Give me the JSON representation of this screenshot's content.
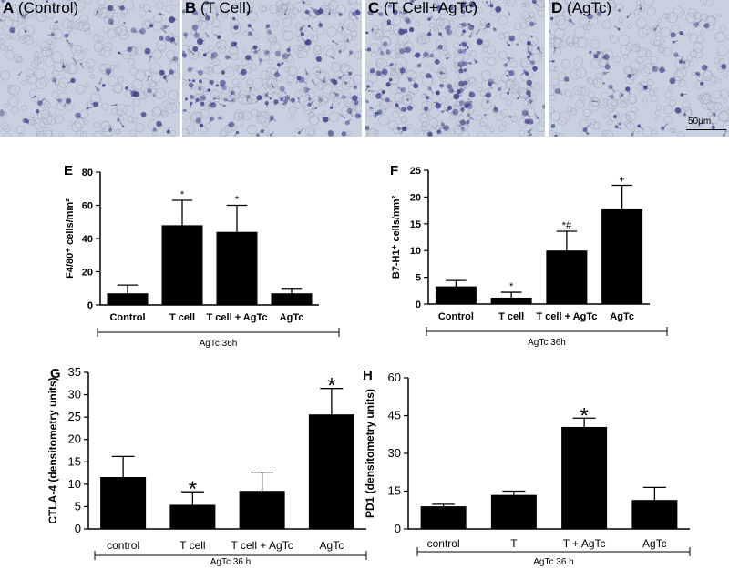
{
  "micrographs": [
    {
      "letter": "A",
      "caption": "(Control)",
      "density": 0.25
    },
    {
      "letter": "B",
      "caption": "(T Cell)",
      "density": 0.7
    },
    {
      "letter": "C",
      "caption": "(T Cell+AgTc)",
      "density": 0.8
    },
    {
      "letter": "D",
      "caption": "(AgTc)",
      "density": 0.2
    }
  ],
  "scale_bar": "50μm",
  "colors": {
    "bar": "#000000",
    "tissue_bg": "#c9d0df",
    "stain": "#3b3f86"
  },
  "chart_data": [
    {
      "panel": "E",
      "type": "bar",
      "title": "",
      "categories": [
        "Control",
        "T cell",
        "T cell + AgTc",
        "AgTc"
      ],
      "values": [
        7,
        48,
        44,
        7
      ],
      "errors": [
        5,
        15,
        16,
        3
      ],
      "annotations": [
        "",
        "*",
        "*",
        ""
      ],
      "ylabel": "F4/80⁺ cells/mm²",
      "ylim": [
        0,
        80
      ],
      "yticks": [
        0,
        20,
        40,
        60,
        80
      ],
      "group_label": "AgTc 36h"
    },
    {
      "panel": "F",
      "type": "bar",
      "title": "",
      "categories": [
        "Control",
        "T cell",
        "T cell + AgTc",
        "AgTc"
      ],
      "values": [
        3.3,
        1.2,
        10,
        17.7
      ],
      "errors": [
        1.1,
        1.0,
        3.6,
        4.5
      ],
      "annotations": [
        "",
        "*",
        "*#",
        "+"
      ],
      "ylabel": "B7-H1⁺ cells/mm²",
      "ylim": [
        0,
        25
      ],
      "yticks": [
        0,
        5,
        10,
        15,
        20,
        25
      ],
      "group_label": "AgTc 36h"
    },
    {
      "panel": "G",
      "type": "bar",
      "title": "",
      "categories": [
        "control",
        "T  cell",
        "T cell + AgTc",
        "AgTc"
      ],
      "values": [
        11.6,
        5.4,
        8.5,
        25.6
      ],
      "errors": [
        4.6,
        2.9,
        4.2,
        5.8
      ],
      "annotations": [
        "",
        "*",
        "",
        "*"
      ],
      "ylabel": "CTLA-4 (densitometry units)",
      "ylim": [
        0,
        35
      ],
      "yticks": [
        0,
        5,
        10,
        15,
        20,
        25,
        30,
        35
      ],
      "group_label": "AgTc 36 h"
    },
    {
      "panel": "H",
      "type": "bar",
      "title": "",
      "categories": [
        "control",
        "T",
        "T + AgTc",
        "AgTc"
      ],
      "values": [
        9,
        13.5,
        40.5,
        11.5
      ],
      "errors": [
        0.8,
        1.5,
        3.5,
        5
      ],
      "annotations": [
        "",
        "",
        "*",
        ""
      ],
      "ylabel": "PD1 (densitometry units)",
      "ylim": [
        0,
        60
      ],
      "yticks": [
        0,
        15,
        30,
        45,
        60
      ],
      "group_label": "AgTc 36 h"
    }
  ]
}
